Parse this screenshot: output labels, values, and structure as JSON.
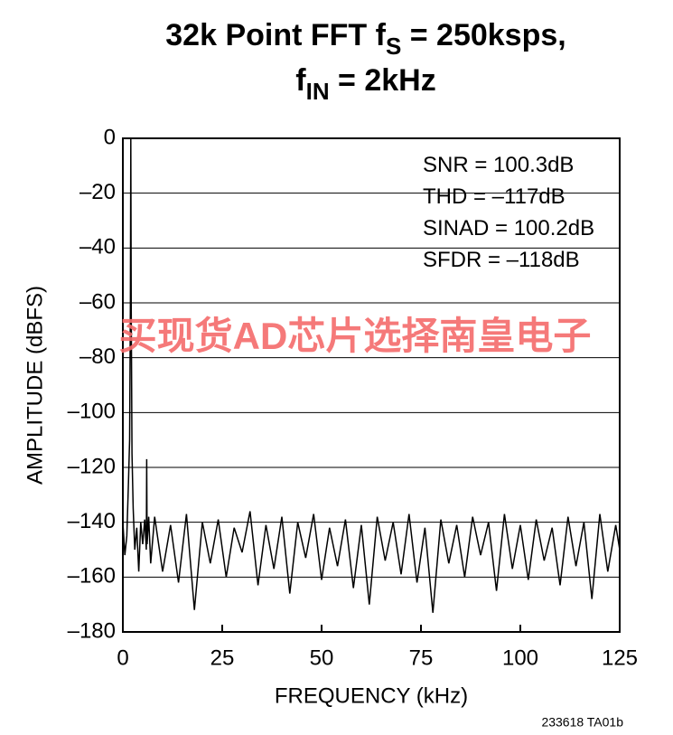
{
  "chart_data": {
    "type": "line",
    "title": {
      "line1": [
        "32k Point FFT f",
        "S",
        " = 250ksps,"
      ],
      "line2": [
        "f",
        "IN",
        " = 2kHz"
      ]
    },
    "x_label": "FREQUENCY (kHz)",
    "y_label": "AMPLITUDE (dBFS)",
    "annotations": [
      "SNR = 100.3dB",
      "THD = –117dB",
      "SINAD = 100.2dB",
      "SFDR = –118dB"
    ],
    "watermark": "买现货AD芯片选择南皇电子",
    "footnote": "233618 TA01b",
    "xlim": [
      0,
      125
    ],
    "xticks": [
      0,
      25,
      50,
      75,
      100,
      125
    ],
    "ylim": [
      -180,
      0
    ],
    "yticks": [
      0,
      {
        "value": -20,
        "label": "–20"
      },
      {
        "value": -40,
        "label": "–40"
      },
      {
        "value": -60,
        "label": "–60"
      },
      {
        "value": -80,
        "label": "–80"
      },
      {
        "value": -100,
        "label": "–100"
      },
      {
        "value": -120,
        "label": "–120"
      },
      {
        "value": -140,
        "label": "–140"
      },
      {
        "value": -160,
        "label": "–160"
      },
      {
        "value": -180,
        "label": "–180"
      }
    ],
    "grid": true,
    "color": "#000000",
    "x": [
      0,
      0.5,
      1,
      1.4,
      1.7,
      1.9,
      2,
      2.1,
      2.3,
      2.6,
      3,
      3.5,
      4,
      4.5,
      5,
      5.5,
      5.9,
      6,
      6.1,
      6.5,
      7,
      8,
      10,
      12,
      14,
      16,
      18,
      20,
      22,
      24,
      26,
      28,
      30,
      32,
      34,
      36,
      38,
      40,
      42,
      44,
      46,
      48,
      50,
      52,
      54,
      56,
      58,
      60,
      62,
      64,
      66,
      68,
      70,
      72,
      74,
      76,
      78,
      80,
      82,
      84,
      86,
      88,
      90,
      92,
      94,
      96,
      98,
      100,
      102,
      104,
      106,
      108,
      110,
      112,
      114,
      116,
      118,
      120,
      122,
      124,
      125
    ],
    "values": [
      -140,
      -152,
      -145,
      -126,
      -110,
      -60,
      0,
      -60,
      -115,
      -135,
      -150,
      -142,
      -158,
      -140,
      -148,
      -139,
      -150,
      -117,
      -148,
      -138,
      -155,
      -138,
      -158,
      -141,
      -162,
      -137,
      -172,
      -140,
      -155,
      -139,
      -160,
      -142,
      -151,
      -136,
      -163,
      -141,
      -157,
      -138,
      -166,
      -140,
      -153,
      -137,
      -161,
      -142,
      -156,
      -139,
      -164,
      -141,
      -170,
      -138,
      -154,
      -140,
      -159,
      -137,
      -162,
      -142,
      -173,
      -139,
      -155,
      -141,
      -160,
      -138,
      -152,
      -140,
      -165,
      -137,
      -157,
      -141,
      -161,
      -139,
      -154,
      -142,
      -163,
      -138,
      -156,
      -140,
      -168,
      -137,
      -158,
      -141,
      -150
    ]
  }
}
